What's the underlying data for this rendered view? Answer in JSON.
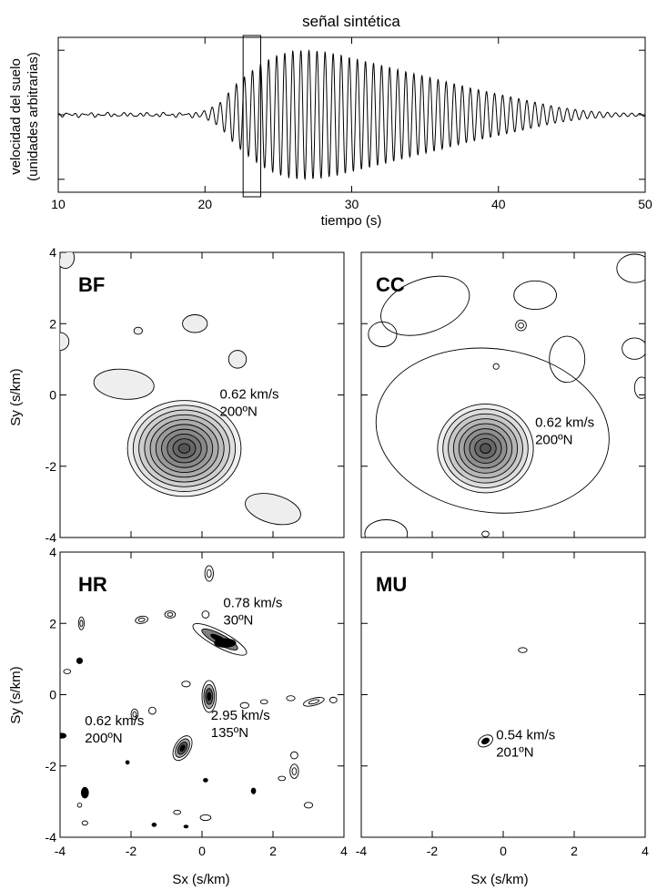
{
  "chart_data": [
    {
      "type": "line",
      "title": "señal sintética",
      "xlabel": "tiempo (s)",
      "ylabel_lines": [
        "velocidad del suelo",
        "(unidades arbitrarias)"
      ],
      "xlim": [
        10,
        50
      ],
      "ylim": [
        -1.2,
        1.2
      ],
      "xticks": [
        10,
        20,
        30,
        40,
        50
      ],
      "xtick_labels": [
        "10",
        "20",
        "30",
        "40",
        "50"
      ],
      "yticks": [
        -1,
        0,
        1
      ],
      "grid": false,
      "series": [
        {
          "kind": "modulated-sinusoid",
          "period_s": 0.55,
          "envelope": {
            "t": [
              10,
              15,
              19,
              20,
              21,
              22,
              23,
              24,
              25,
              26,
              27,
              28,
              29,
              30,
              32,
              34,
              36,
              38,
              40,
              42,
              44,
              46,
              48,
              50
            ],
            "amp": [
              0.02,
              0.02,
              0.02,
              0.06,
              0.18,
              0.45,
              0.65,
              0.82,
              0.93,
              0.99,
              1.0,
              0.98,
              0.94,
              0.88,
              0.77,
              0.65,
              0.54,
              0.42,
              0.32,
              0.22,
              0.12,
              0.06,
              0.03,
              0.02
            ]
          }
        }
      ],
      "highlight_window": {
        "x": [
          22.6,
          23.8
        ],
        "y": [
          -1.4,
          1.4
        ]
      }
    },
    {
      "type": "contour",
      "panel": "BF",
      "xlabel": "",
      "ylabel": "Sy (s/km)",
      "xlim": [
        -4,
        4
      ],
      "ylim": [
        -4,
        4
      ],
      "ticks": [
        -4,
        -2,
        0,
        2,
        4
      ],
      "tick_labels": [
        "-4",
        "-2",
        "0",
        "2",
        "4"
      ],
      "peak": {
        "sx": -0.5,
        "sy": -1.5
      },
      "annotations": [
        {
          "lines": [
            "0.62 km/s",
            "200ºN"
          ],
          "x": 0.5,
          "y": -0.1
        }
      ],
      "features": [
        {
          "x": -0.5,
          "y": -1.5,
          "rx": 1.6,
          "ry": 1.35,
          "rot": 0,
          "levels": 10,
          "fill": "#f0f0f0",
          "inner_fill": "#555555"
        },
        {
          "x": -2.2,
          "y": 0.3,
          "rx": 0.85,
          "ry": 0.42,
          "rot": -5,
          "levels": 1,
          "fill": "#eeeeee"
        },
        {
          "x": 2.0,
          "y": -3.2,
          "rx": 0.8,
          "ry": 0.4,
          "rot": -15,
          "levels": 1,
          "fill": "#eeeeee"
        },
        {
          "x": -0.2,
          "y": 2.0,
          "rx": 0.35,
          "ry": 0.25,
          "rot": 0,
          "levels": 1,
          "fill": "#eeeeee"
        },
        {
          "x": 1.0,
          "y": 1.0,
          "rx": 0.25,
          "ry": 0.25,
          "rot": 0,
          "levels": 1,
          "fill": "#eeeeee"
        },
        {
          "x": -1.8,
          "y": 1.8,
          "rx": 0.12,
          "ry": 0.1,
          "rot": 0,
          "levels": 1,
          "fill": "#eeeeee"
        },
        {
          "x": -4.0,
          "y": 1.5,
          "rx": 0.25,
          "ry": 0.25,
          "rot": 0,
          "levels": 1,
          "fill": "#eeeeee"
        },
        {
          "x": -3.85,
          "y": 3.85,
          "rx": 0.25,
          "ry": 0.3,
          "rot": 0,
          "levels": 1,
          "fill": "#eeeeee"
        }
      ]
    },
    {
      "type": "contour",
      "panel": "CC",
      "xlabel": "",
      "ylabel": "",
      "xlim": [
        -4,
        4
      ],
      "ylim": [
        -4,
        4
      ],
      "ticks": [
        -4,
        -2,
        0,
        2,
        4
      ],
      "tick_labels": [
        "-4",
        "-2",
        "0",
        "2",
        "4"
      ],
      "peak": {
        "sx": -0.5,
        "sy": -1.5
      },
      "annotations": [
        {
          "lines": [
            "0.62 km/s",
            "200ºN"
          ],
          "x": 0.9,
          "y": -0.9
        }
      ],
      "features": [
        {
          "x": -0.5,
          "y": -1.5,
          "rx": 1.35,
          "ry": 1.25,
          "rot": 0,
          "levels": 9,
          "fill": "#f0f0f0",
          "inner_fill": "#555555"
        },
        {
          "x": -0.3,
          "y": -1.0,
          "rx": 3.3,
          "ry": 2.3,
          "rot": -8,
          "levels": 1,
          "fill": "none"
        },
        {
          "x": -2.2,
          "y": 2.5,
          "rx": 1.3,
          "ry": 0.75,
          "rot": 20,
          "levels": 1,
          "fill": "none"
        },
        {
          "x": 1.8,
          "y": 1.0,
          "rx": 0.5,
          "ry": 0.65,
          "rot": 0,
          "levels": 1,
          "fill": "none"
        },
        {
          "x": 0.9,
          "y": 2.8,
          "rx": 0.6,
          "ry": 0.4,
          "rot": 0,
          "levels": 1,
          "fill": "none"
        },
        {
          "x": -3.4,
          "y": 1.7,
          "rx": 0.4,
          "ry": 0.35,
          "rot": 0,
          "levels": 1,
          "fill": "none"
        },
        {
          "x": 3.7,
          "y": 3.55,
          "rx": 0.5,
          "ry": 0.4,
          "rot": 0,
          "levels": 1,
          "fill": "none"
        },
        {
          "x": 3.7,
          "y": 1.3,
          "rx": 0.35,
          "ry": 0.3,
          "rot": 0,
          "levels": 1,
          "fill": "none"
        },
        {
          "x": 3.9,
          "y": 0.2,
          "rx": 0.2,
          "ry": 0.3,
          "rot": 0,
          "levels": 1,
          "fill": "none"
        },
        {
          "x": -3.3,
          "y": -3.9,
          "rx": 0.6,
          "ry": 0.4,
          "rot": 0,
          "levels": 1,
          "fill": "none"
        },
        {
          "x": -0.5,
          "y": -3.9,
          "rx": 0.1,
          "ry": 0.08,
          "rot": 0,
          "levels": 1,
          "fill": "none"
        },
        {
          "x": -0.2,
          "y": 0.8,
          "rx": 0.08,
          "ry": 0.08,
          "rot": 0,
          "levels": 1,
          "fill": "none"
        },
        {
          "x": 0.5,
          "y": 1.95,
          "rx": 0.15,
          "ry": 0.15,
          "rot": 0,
          "levels": 2,
          "fill": "none"
        }
      ]
    },
    {
      "type": "contour",
      "panel": "HR",
      "xlabel": "Sx (s/km)",
      "ylabel": "Sy (s/km)",
      "xlim": [
        -4,
        4
      ],
      "ylim": [
        -4,
        4
      ],
      "ticks": [
        -4,
        -2,
        0,
        2,
        4
      ],
      "tick_labels": [
        "-4",
        "-2",
        "0",
        "2",
        "4"
      ],
      "peaks": [
        {
          "sx": -0.5,
          "sy": -1.5
        },
        {
          "sx": 0.6,
          "sy": 1.5
        },
        {
          "sx": 0.1,
          "sy": -0.1
        }
      ],
      "annotations": [
        {
          "lines": [
            "0.78 km/s",
            "30ºN"
          ],
          "x": 0.6,
          "y": 2.45
        },
        {
          "lines": [
            "2.95 km/s",
            "135ºN"
          ],
          "x": 0.25,
          "y": -0.7
        },
        {
          "lines": [
            "0.62 km/s",
            "200ºN"
          ],
          "x": -3.3,
          "y": -0.85
        }
      ],
      "features": [
        {
          "x": -0.55,
          "y": -1.5,
          "rx": 0.38,
          "ry": 0.22,
          "rot": 60,
          "levels": 4,
          "fill": "none",
          "inner_fill": "#000000"
        },
        {
          "x": 0.2,
          "y": -0.05,
          "rx": 0.2,
          "ry": 0.45,
          "rot": 0,
          "levels": 4,
          "fill": "none",
          "inner_fill": "#000000"
        },
        {
          "x": 0.5,
          "y": 1.55,
          "rx": 0.85,
          "ry": 0.22,
          "rot": -28,
          "levels": 3,
          "fill": "none",
          "inner_fill": "#000000"
        },
        {
          "x": 0.65,
          "y": 1.45,
          "rx": 0.3,
          "ry": 0.12,
          "rot": 0,
          "levels": 1,
          "fill": "#000000"
        },
        {
          "x": 0.2,
          "y": 3.4,
          "rx": 0.12,
          "ry": 0.22,
          "rot": 0,
          "levels": 2,
          "fill": "none"
        },
        {
          "x": 0.1,
          "y": 2.25,
          "rx": 0.1,
          "ry": 0.1,
          "rot": 0,
          "levels": 1,
          "fill": "none"
        },
        {
          "x": -0.9,
          "y": 2.25,
          "rx": 0.15,
          "ry": 0.1,
          "rot": 0,
          "levels": 2,
          "fill": "none"
        },
        {
          "x": -1.7,
          "y": 2.1,
          "rx": 0.18,
          "ry": 0.1,
          "rot": 10,
          "levels": 2,
          "fill": "none"
        },
        {
          "x": -3.4,
          "y": 2.0,
          "rx": 0.08,
          "ry": 0.18,
          "rot": 0,
          "levels": 2,
          "fill": "none"
        },
        {
          "x": -3.45,
          "y": 0.95,
          "rx": 0.08,
          "ry": 0.08,
          "rot": 45,
          "levels": 1,
          "fill": "#000000"
        },
        {
          "x": -3.8,
          "y": 0.65,
          "rx": 0.1,
          "ry": 0.06,
          "rot": 0,
          "levels": 1,
          "fill": "none"
        },
        {
          "x": -1.9,
          "y": -0.55,
          "rx": 0.1,
          "ry": 0.15,
          "rot": 0,
          "levels": 2,
          "fill": "none"
        },
        {
          "x": -1.4,
          "y": -0.45,
          "rx": 0.1,
          "ry": 0.1,
          "rot": 0,
          "levels": 1,
          "fill": "none"
        },
        {
          "x": -0.45,
          "y": 0.3,
          "rx": 0.12,
          "ry": 0.08,
          "rot": 0,
          "levels": 1,
          "fill": "none"
        },
        {
          "x": 1.2,
          "y": -0.3,
          "rx": 0.12,
          "ry": 0.08,
          "rot": 0,
          "levels": 1,
          "fill": "none"
        },
        {
          "x": 1.75,
          "y": -0.2,
          "rx": 0.1,
          "ry": 0.06,
          "rot": 0,
          "levels": 1,
          "fill": "none"
        },
        {
          "x": 2.5,
          "y": -0.1,
          "rx": 0.12,
          "ry": 0.07,
          "rot": 0,
          "levels": 1,
          "fill": "none"
        },
        {
          "x": 3.15,
          "y": -0.2,
          "rx": 0.3,
          "ry": 0.1,
          "rot": 15,
          "levels": 2,
          "fill": "none"
        },
        {
          "x": 3.7,
          "y": -0.15,
          "rx": 0.1,
          "ry": 0.08,
          "rot": 0,
          "levels": 1,
          "fill": "none"
        },
        {
          "x": 2.6,
          "y": -1.7,
          "rx": 0.1,
          "ry": 0.1,
          "rot": 0,
          "levels": 1,
          "fill": "none"
        },
        {
          "x": 2.6,
          "y": -2.15,
          "rx": 0.12,
          "ry": 0.2,
          "rot": 0,
          "levels": 2,
          "fill": "none"
        },
        {
          "x": 2.25,
          "y": -2.35,
          "rx": 0.1,
          "ry": 0.06,
          "rot": 0,
          "levels": 1,
          "fill": "none"
        },
        {
          "x": 1.45,
          "y": -2.7,
          "rx": 0.06,
          "ry": 0.08,
          "rot": 0,
          "levels": 1,
          "fill": "#000000"
        },
        {
          "x": 0.1,
          "y": -2.4,
          "rx": 0.06,
          "ry": 0.05,
          "rot": 0,
          "levels": 1,
          "fill": "#000000"
        },
        {
          "x": 0.1,
          "y": -3.45,
          "rx": 0.15,
          "ry": 0.08,
          "rot": 0,
          "levels": 1,
          "fill": "none"
        },
        {
          "x": -0.7,
          "y": -3.3,
          "rx": 0.1,
          "ry": 0.06,
          "rot": 0,
          "levels": 1,
          "fill": "none"
        },
        {
          "x": -3.3,
          "y": -2.75,
          "rx": 0.1,
          "ry": 0.15,
          "rot": 0,
          "levels": 2,
          "fill": "#000000"
        },
        {
          "x": -3.45,
          "y": -3.1,
          "rx": 0.06,
          "ry": 0.06,
          "rot": 0,
          "levels": 1,
          "fill": "none"
        },
        {
          "x": -3.95,
          "y": -1.15,
          "rx": 0.12,
          "ry": 0.07,
          "rot": 0,
          "levels": 1,
          "fill": "#000000"
        },
        {
          "x": -1.35,
          "y": -3.65,
          "rx": 0.06,
          "ry": 0.05,
          "rot": 0,
          "levels": 1,
          "fill": "#000000"
        },
        {
          "x": -2.1,
          "y": -1.9,
          "rx": 0.05,
          "ry": 0.05,
          "rot": 0,
          "levels": 1,
          "fill": "#000000"
        },
        {
          "x": -3.3,
          "y": -3.6,
          "rx": 0.08,
          "ry": 0.06,
          "rot": 0,
          "levels": 1,
          "fill": "none"
        },
        {
          "x": 3.0,
          "y": -3.1,
          "rx": 0.12,
          "ry": 0.08,
          "rot": 0,
          "levels": 1,
          "fill": "none"
        },
        {
          "x": -0.45,
          "y": -3.7,
          "rx": 0.06,
          "ry": 0.04,
          "rot": 0,
          "levels": 1,
          "fill": "#000000"
        }
      ]
    },
    {
      "type": "contour",
      "panel": "MU",
      "xlabel": "Sx (s/km)",
      "ylabel": "",
      "xlim": [
        -4,
        4
      ],
      "ylim": [
        -4,
        4
      ],
      "ticks": [
        -4,
        -2,
        0,
        2,
        4
      ],
      "tick_labels": [
        "-4",
        "-2",
        "0",
        "2",
        "4"
      ],
      "peak": {
        "sx": -0.5,
        "sy": -1.3
      },
      "annotations": [
        {
          "lines": [
            "0.54 km/s",
            "201ºN"
          ],
          "x": -0.2,
          "y": -1.25
        }
      ],
      "features": [
        {
          "x": -0.5,
          "y": -1.3,
          "rx": 0.22,
          "ry": 0.15,
          "rot": 30,
          "levels": 2,
          "fill": "none",
          "inner_fill": "#000000"
        },
        {
          "x": 0.55,
          "y": 1.25,
          "rx": 0.12,
          "ry": 0.07,
          "rot": 0,
          "levels": 1,
          "fill": "none"
        }
      ]
    }
  ]
}
